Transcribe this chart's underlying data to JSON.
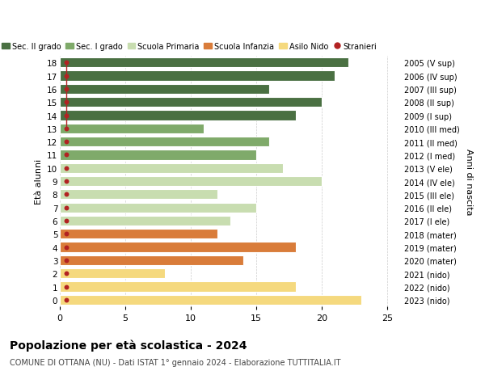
{
  "ages": [
    0,
    1,
    2,
    3,
    4,
    5,
    6,
    7,
    8,
    9,
    10,
    11,
    12,
    13,
    14,
    15,
    16,
    17,
    18
  ],
  "values": [
    23,
    18,
    8,
    14,
    18,
    12,
    13,
    15,
    12,
    20,
    17,
    15,
    16,
    11,
    18,
    20,
    16,
    21,
    22
  ],
  "stranieri_vals": [
    0,
    0,
    0,
    0,
    0,
    0,
    0,
    0,
    0,
    0,
    0,
    0,
    0,
    1,
    1,
    1,
    0,
    1,
    1
  ],
  "right_labels": [
    "2023 (nido)",
    "2022 (nido)",
    "2021 (nido)",
    "2020 (mater)",
    "2019 (mater)",
    "2018 (mater)",
    "2017 (I ele)",
    "2016 (II ele)",
    "2015 (III ele)",
    "2014 (IV ele)",
    "2013 (V ele)",
    "2012 (I med)",
    "2011 (II med)",
    "2010 (III med)",
    "2009 (I sup)",
    "2008 (II sup)",
    "2007 (III sup)",
    "2006 (IV sup)",
    "2005 (V sup)"
  ],
  "bar_colors": [
    "#f5d97e",
    "#f5d97e",
    "#f5d97e",
    "#d97c3a",
    "#d97c3a",
    "#d97c3a",
    "#c8ddb0",
    "#c8ddb0",
    "#c8ddb0",
    "#c8ddb0",
    "#c8ddb0",
    "#7faa6a",
    "#7faa6a",
    "#7faa6a",
    "#4a7042",
    "#4a7042",
    "#4a7042",
    "#4a7042",
    "#4a7042"
  ],
  "legend_labels": [
    "Sec. II grado",
    "Sec. I grado",
    "Scuola Primaria",
    "Scuola Infanzia",
    "Asilo Nido",
    "Stranieri"
  ],
  "legend_colors": [
    "#4a7042",
    "#7faa6a",
    "#c8ddb0",
    "#d97c3a",
    "#f5d97e",
    "#b22222"
  ],
  "title": "Popolazione per età scolastica - 2024",
  "subtitle": "COMUNE DI OTTANA (NU) - Dati ISTAT 1° gennaio 2024 - Elaborazione TUTTITALIA.IT",
  "ylabel_left": "Età alunni",
  "ylabel_right": "Anni di nascita",
  "xlim": [
    0,
    26
  ],
  "ylim": [
    -0.5,
    18.5
  ],
  "background_color": "#ffffff",
  "grid_color": "#cccccc",
  "stranieri_color": "#b22222",
  "stranieri_dot_x": 0.5,
  "stranieri_line_ages": [
    13,
    14,
    15,
    17,
    18
  ]
}
